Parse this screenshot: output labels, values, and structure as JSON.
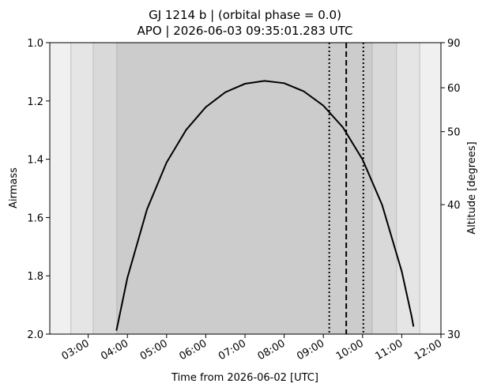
{
  "chart_data": {
    "type": "line",
    "title": "GJ 1214 b | (orbital phase = 0.0)",
    "subtitle": "APO | 2026-06-03 09:35:01.283 UTC",
    "x_label": "Time from 2026-06-02 [UTC]",
    "y_label": "Airmass",
    "y2_label": "Altitude [degrees]",
    "xlim": [
      2.02,
      12.0
    ],
    "xticks": [
      {
        "value": 3,
        "label": "03:00"
      },
      {
        "value": 4,
        "label": "04:00"
      },
      {
        "value": 5,
        "label": "05:00"
      },
      {
        "value": 6,
        "label": "06:00"
      },
      {
        "value": 7,
        "label": "07:00"
      },
      {
        "value": 8,
        "label": "08:00"
      },
      {
        "value": 9,
        "label": "09:00"
      },
      {
        "value": 10,
        "label": "10:00"
      },
      {
        "value": 11,
        "label": "11:00"
      },
      {
        "value": 12,
        "label": "12:00"
      }
    ],
    "ylim": [
      2.0,
      1.0
    ],
    "yticks": [
      {
        "value": 1,
        "label": "1.0"
      },
      1.2,
      1.4,
      1.6,
      1.8,
      {
        "value": 2,
        "label": "2.0"
      }
    ],
    "y2_scale": "airmass",
    "y2lim": [
      30,
      90
    ],
    "y2ticks": [
      90,
      60,
      50,
      40,
      30
    ],
    "bands": [
      {
        "xlim": [
          2.02,
          2.56
        ],
        "color": "#f0f0f0"
      },
      {
        "xlim": [
          2.56,
          3.13
        ],
        "color": "#e5e5e5"
      },
      {
        "xlim": [
          3.13,
          3.73
        ],
        "color": "#d9d9d9"
      },
      {
        "xlim": [
          3.73,
          10.25
        ],
        "color": "#cccccc"
      },
      {
        "xlim": [
          10.25,
          10.87
        ],
        "color": "#d9d9d9"
      },
      {
        "xlim": [
          10.87,
          11.46
        ],
        "color": "#e5e5e5"
      },
      {
        "xlim": [
          11.46,
          12.0
        ],
        "color": "#f0f0f0"
      }
    ],
    "vlines": [
      {
        "x": 9.15,
        "style": "dotted"
      },
      {
        "x": 9.5836,
        "style": "dashed"
      },
      {
        "x": 10.02,
        "style": "dotted"
      }
    ],
    "series": [
      {
        "color": "#000000",
        "x": [
          3.72,
          4,
          4.5,
          5,
          5.5,
          6,
          6.5,
          7,
          7.5,
          8,
          8.5,
          9,
          9.5,
          10,
          10.5,
          11,
          11.25,
          11.3
        ],
        "values": [
          1.988,
          1.807,
          1.572,
          1.411,
          1.299,
          1.221,
          1.17,
          1.141,
          1.131,
          1.139,
          1.167,
          1.216,
          1.291,
          1.401,
          1.557,
          1.785,
          1.938,
          1.974
        ]
      }
    ]
  }
}
